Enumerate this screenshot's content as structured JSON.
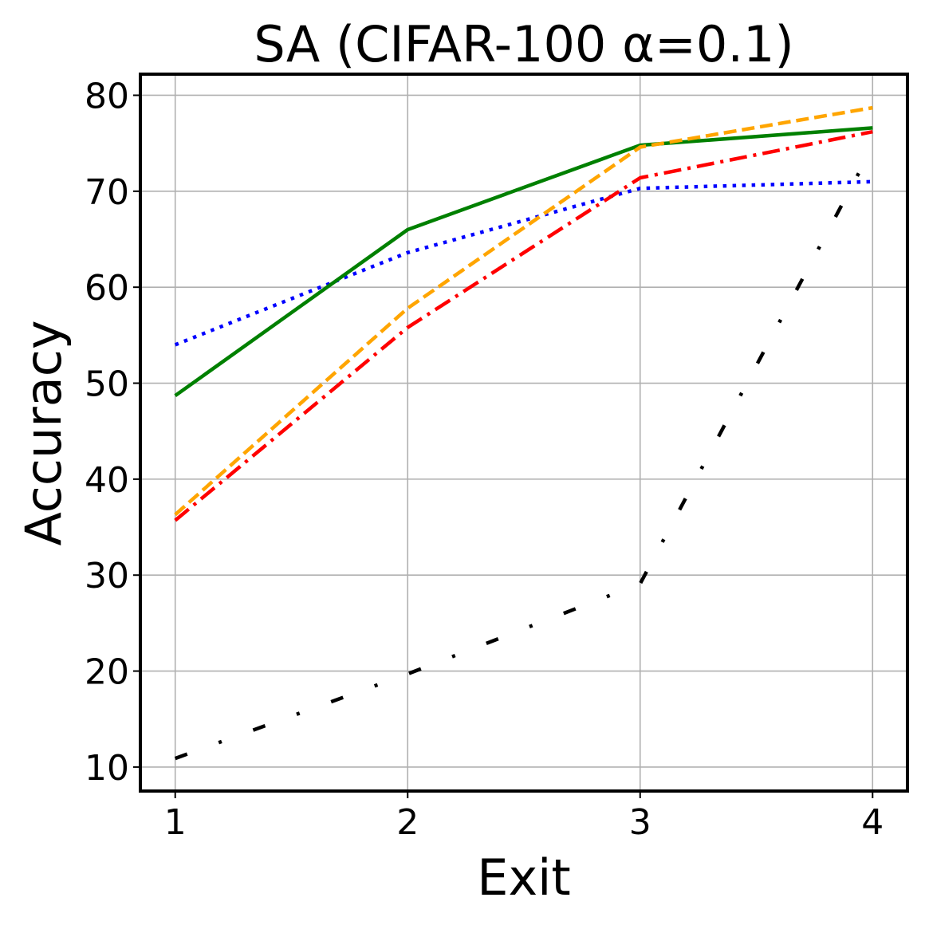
{
  "chart_data": {
    "type": "line",
    "title": "SA (CIFAR-100 α=0.1)",
    "xlabel": "Exit",
    "ylabel": "Accuracy",
    "x": [
      1,
      2,
      3,
      4
    ],
    "x_tick_labels": [
      "1",
      "2",
      "3",
      "4"
    ],
    "y_ticks": [
      10,
      20,
      30,
      40,
      50,
      60,
      70,
      80
    ],
    "y_tick_labels": [
      "10",
      "20",
      "30",
      "40",
      "50",
      "60",
      "70",
      "80"
    ],
    "xlim": [
      0.85,
      4.15
    ],
    "ylim": [
      7.5,
      82.2
    ],
    "grid": true,
    "legend": "none",
    "series": [
      {
        "values": [
          54.0,
          63.6,
          70.3,
          71.0
        ],
        "color": "#0000ff",
        "style": "dotted"
      },
      {
        "values": [
          48.7,
          66.0,
          74.8,
          76.6
        ],
        "color": "#008000",
        "style": "solid"
      },
      {
        "values": [
          36.3,
          57.8,
          74.6,
          78.7
        ],
        "color": "#ffa500",
        "style": "dashed"
      },
      {
        "values": [
          35.7,
          55.8,
          71.4,
          76.2
        ],
        "color": "#ff0000",
        "style": "dashdot"
      },
      {
        "values": [
          10.9,
          19.7,
          29.1,
          74.6
        ],
        "color": "#000000",
        "style": "loosely-dashdotted"
      }
    ]
  }
}
